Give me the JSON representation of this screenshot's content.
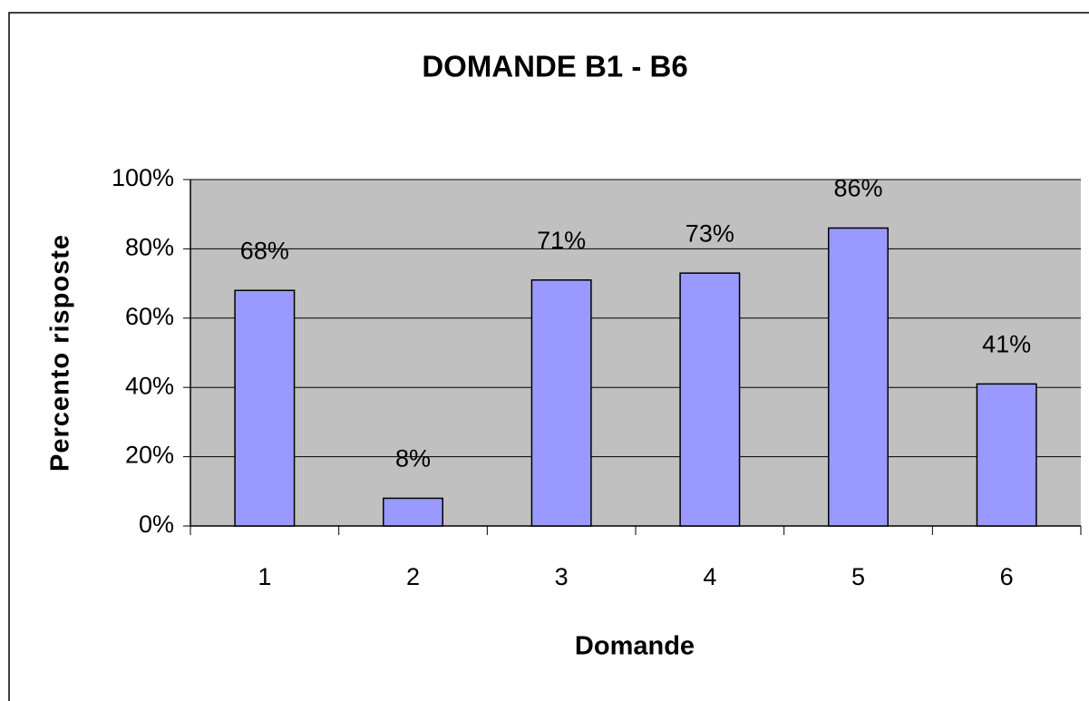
{
  "chart_data": {
    "type": "bar",
    "title": "DOMANDE B1 - B6",
    "x_label": "Domande",
    "y_label": "Percento risposte",
    "categories": [
      "1",
      "2",
      "3",
      "4",
      "5",
      "6"
    ],
    "values": [
      68,
      8,
      71,
      73,
      86,
      41
    ],
    "value_labels": [
      "68%",
      "8%",
      "71%",
      "73%",
      "86%",
      "41%"
    ],
    "color": "#9999ff",
    "plot_background": "#c0c0c0",
    "ylim": [
      0,
      100
    ],
    "yticks": [
      {
        "value": 0,
        "label": "0%"
      },
      {
        "value": 20,
        "label": "20%"
      },
      {
        "value": 40,
        "label": "40%"
      },
      {
        "value": 60,
        "label": "60%"
      },
      {
        "value": 80,
        "label": "80%"
      },
      {
        "value": 100,
        "label": "100%"
      }
    ],
    "grid": true
  }
}
